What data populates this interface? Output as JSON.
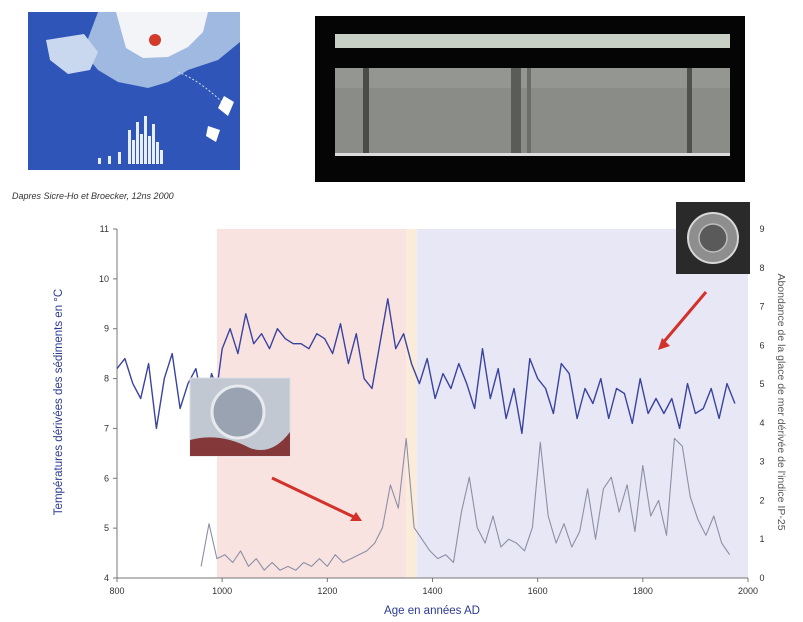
{
  "map": {
    "caption": "Dapres Sicre-Ho et Broecker, 12ns 2000"
  },
  "chart_data": {
    "type": "line",
    "xlim": [
      800,
      2000
    ],
    "x_ticks": [
      "800",
      "1000",
      "1200",
      "1400",
      "1600",
      "1800",
      "2000"
    ],
    "xlabel": "Age en années AD",
    "left_axis": {
      "label": "Températures dérivées des sédiments en °C",
      "ylim": [
        4,
        11
      ],
      "ticks": [
        "4",
        "5",
        "6",
        "7",
        "8",
        "9",
        "10",
        "11"
      ]
    },
    "right_axis": {
      "label": "Abondance de la glace de mer dérivée de l'indice IP-25",
      "ylim": [
        0,
        9
      ],
      "ticks": [
        "0",
        "1",
        "2",
        "3",
        "4",
        "5",
        "6",
        "7",
        "8",
        "9"
      ]
    },
    "shaded_periods": [
      {
        "start": 990,
        "end": 1350,
        "color": "#f9e3e1"
      },
      {
        "start": 1350,
        "end": 1370,
        "color": "#fbecd9"
      },
      {
        "start": 1370,
        "end": 2000,
        "color": "#e7e7f5"
      }
    ],
    "series": [
      {
        "axis": "left",
        "color": "#3a43a0",
        "x": [
          800,
          815,
          830,
          845,
          860,
          875,
          890,
          905,
          920,
          935,
          950,
          965,
          980,
          990,
          1000,
          1015,
          1030,
          1045,
          1060,
          1075,
          1090,
          1105,
          1120,
          1135,
          1150,
          1165,
          1180,
          1195,
          1210,
          1225,
          1240,
          1255,
          1270,
          1285,
          1300,
          1315,
          1330,
          1345,
          1360,
          1375,
          1390,
          1405,
          1420,
          1435,
          1450,
          1465,
          1480,
          1495,
          1510,
          1525,
          1540,
          1555,
          1570,
          1585,
          1600,
          1615,
          1630,
          1645,
          1660,
          1675,
          1690,
          1705,
          1720,
          1735,
          1750,
          1765,
          1780,
          1795,
          1810,
          1825,
          1840,
          1855,
          1870,
          1885,
          1900,
          1915,
          1930,
          1945,
          1960,
          1975
        ],
        "y": [
          8.2,
          8.4,
          7.9,
          7.6,
          8.3,
          7.0,
          8.0,
          8.5,
          7.4,
          7.9,
          8.2,
          7.4,
          8.1,
          7.8,
          8.6,
          9.0,
          8.5,
          9.3,
          8.7,
          8.9,
          8.6,
          9.0,
          8.8,
          8.7,
          8.7,
          8.6,
          8.9,
          8.8,
          8.5,
          9.1,
          8.3,
          8.9,
          8.0,
          7.8,
          8.7,
          9.6,
          8.6,
          8.9,
          8.3,
          7.9,
          8.4,
          7.6,
          8.1,
          7.8,
          8.3,
          7.9,
          7.4,
          8.6,
          7.6,
          8.2,
          7.2,
          7.8,
          6.9,
          8.4,
          8.0,
          7.8,
          7.3,
          8.3,
          8.1,
          7.2,
          7.8,
          7.5,
          8.0,
          7.2,
          7.8,
          7.7,
          7.1,
          8.0,
          7.3,
          7.6,
          7.3,
          7.6,
          7.0,
          7.9,
          7.3,
          7.4,
          7.8,
          7.2,
          7.9,
          7.5
        ]
      },
      {
        "axis": "right",
        "color": "#8c8fa6",
        "x": [
          960,
          975,
          990,
          1005,
          1020,
          1035,
          1050,
          1065,
          1080,
          1095,
          1110,
          1125,
          1140,
          1155,
          1170,
          1185,
          1200,
          1215,
          1230,
          1245,
          1260,
          1275,
          1290,
          1305,
          1320,
          1335,
          1350,
          1365,
          1380,
          1395,
          1410,
          1425,
          1440,
          1455,
          1470,
          1485,
          1500,
          1515,
          1530,
          1545,
          1560,
          1575,
          1590,
          1605,
          1620,
          1635,
          1650,
          1665,
          1680,
          1695,
          1710,
          1725,
          1740,
          1755,
          1770,
          1785,
          1800,
          1815,
          1830,
          1845,
          1860,
          1875,
          1890,
          1905,
          1920,
          1935,
          1950,
          1965
        ],
        "y": [
          0.3,
          1.4,
          0.5,
          0.6,
          0.4,
          0.7,
          0.3,
          0.5,
          0.2,
          0.4,
          0.2,
          0.3,
          0.2,
          0.4,
          0.3,
          0.5,
          0.3,
          0.6,
          0.4,
          0.5,
          0.6,
          0.7,
          0.9,
          1.3,
          2.4,
          1.8,
          3.6,
          1.3,
          1.0,
          0.7,
          0.5,
          0.6,
          0.4,
          1.7,
          2.6,
          1.3,
          0.9,
          1.6,
          0.8,
          1.0,
          0.9,
          0.7,
          1.3,
          3.5,
          1.6,
          0.9,
          1.4,
          0.8,
          1.2,
          2.3,
          1.0,
          2.3,
          2.6,
          1.7,
          2.4,
          1.2,
          2.9,
          1.6,
          2.0,
          1.1,
          3.6,
          3.4,
          2.1,
          1.5,
          1.1,
          1.6,
          0.9,
          0.6
        ]
      }
    ]
  }
}
